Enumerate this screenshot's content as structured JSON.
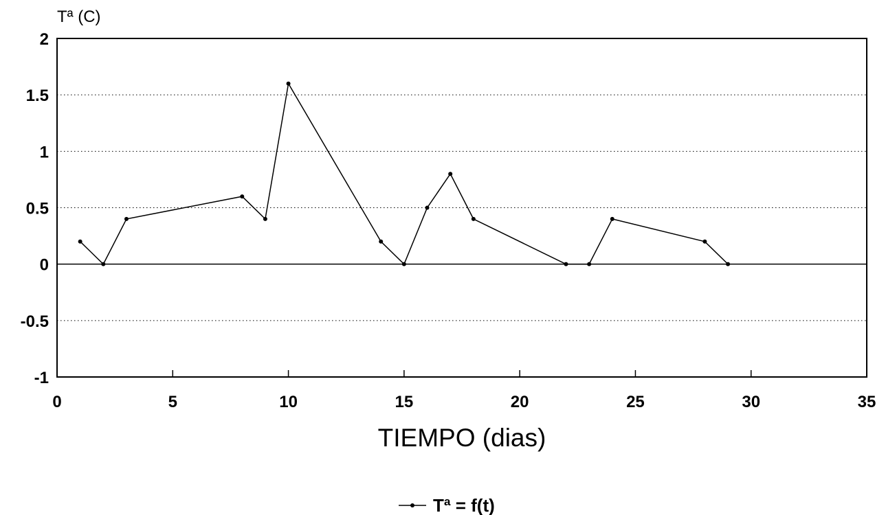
{
  "chart_data": {
    "type": "line",
    "title": "",
    "xlabel": "TIEMPO (dias)",
    "ylabel": "Tª (C)",
    "xlim": [
      0,
      35
    ],
    "ylim": [
      -1,
      2
    ],
    "x_ticks": [
      "0",
      "5",
      "10",
      "15",
      "20",
      "25",
      "30",
      "35"
    ],
    "y_ticks": [
      "-1",
      "-0.5",
      "0",
      "0.5",
      "1",
      "1.5",
      "2"
    ],
    "grid": "horizontal dotted",
    "legend_position": "bottom-center",
    "series": [
      {
        "name": "Tª = f(t)",
        "color": "#000000",
        "marker": "dot",
        "x": [
          1,
          2,
          3,
          8,
          9,
          10,
          14,
          15,
          16,
          17,
          18,
          22,
          23,
          24,
          28,
          29
        ],
        "y": [
          0.2,
          0.0,
          0.4,
          0.6,
          0.4,
          1.6,
          0.2,
          0.0,
          0.5,
          0.8,
          0.4,
          0.0,
          0.0,
          0.4,
          0.2,
          0.0
        ]
      }
    ]
  }
}
